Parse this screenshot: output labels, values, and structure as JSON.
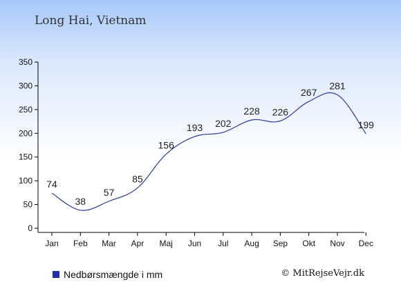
{
  "title": "Long Hai, Vietnam",
  "legend_label": "Nedbørsmængde i mm",
  "credit": "© MitRejseVejr.dk",
  "colors": {
    "line": "#2a3a9e",
    "legend_swatch": "#1b2fa8",
    "text": "#222222"
  },
  "chart_data": {
    "type": "line",
    "title": "Long Hai, Vietnam",
    "xlabel": "",
    "ylabel": "",
    "categories": [
      "Jan",
      "Feb",
      "Mar",
      "Apr",
      "Maj",
      "Jun",
      "Jul",
      "Aug",
      "Sep",
      "Okt",
      "Nov",
      "Dec"
    ],
    "series": [
      {
        "name": "Nedbørsmængde i mm",
        "values": [
          74,
          38,
          57,
          85,
          156,
          193,
          202,
          228,
          226,
          267,
          281,
          199
        ]
      }
    ],
    "ylim": [
      0,
      350
    ],
    "yticks": [
      0,
      50,
      100,
      150,
      200,
      250,
      300,
      350
    ],
    "grid": false,
    "legend": "bottom-left"
  }
}
